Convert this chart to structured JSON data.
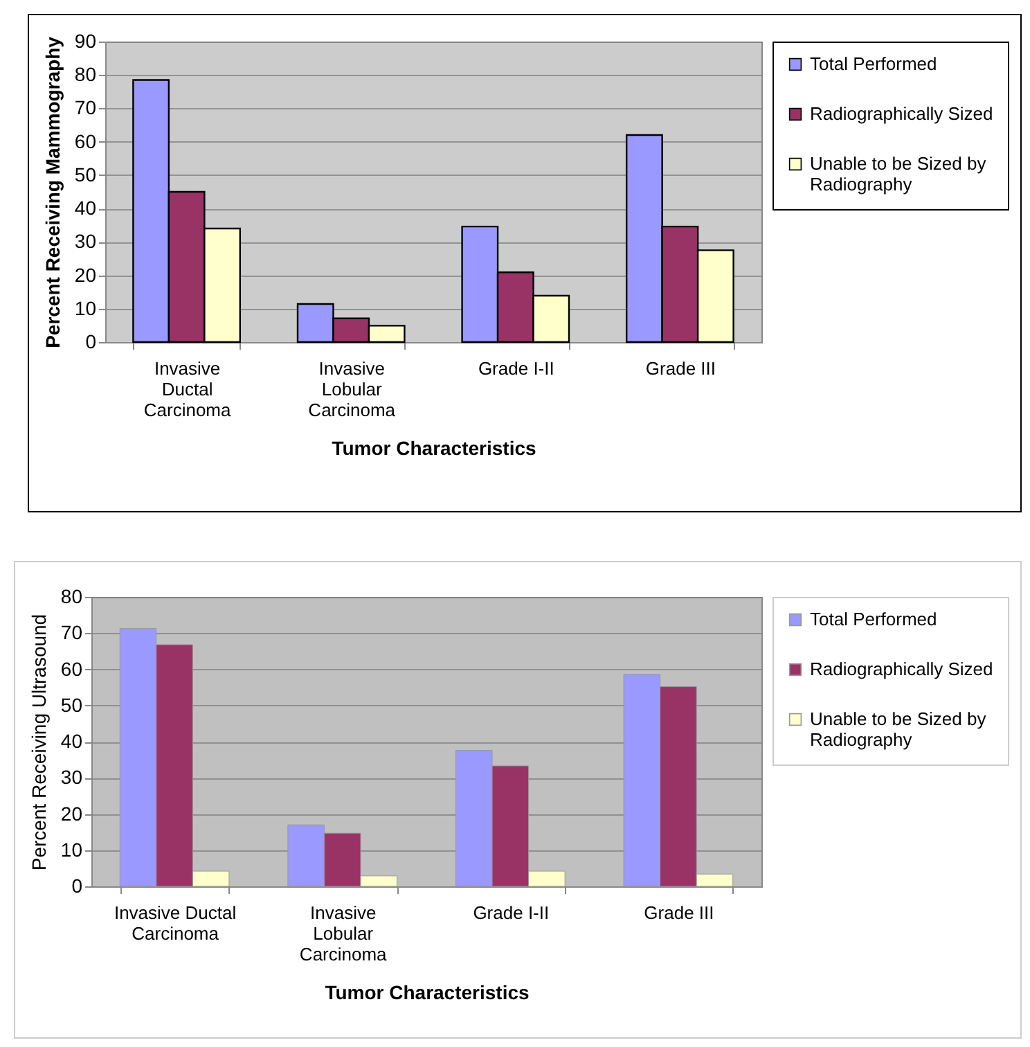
{
  "chart_data": [
    {
      "type": "bar",
      "xlabel": "Tumor Characteristics",
      "ylabel": "Percent Receiving Mammography",
      "categories": [
        "Invasive Ductal Carcinoma",
        "Invasive Lobular Carcinoma",
        "Grade I-II",
        "Grade III"
      ],
      "series": [
        {
          "name": "Total Performed",
          "color": "#9999ff",
          "values": [
            78.5,
            11.4,
            34.6,
            62
          ]
        },
        {
          "name": "Radiographically Sized",
          "color": "#993366",
          "values": [
            45,
            7.1,
            20.9,
            34.6
          ]
        },
        {
          "name": "Unable to be Sized by Radiography",
          "color": "#ffffcc",
          "values": [
            34,
            4.9,
            13.9,
            27.5
          ]
        }
      ],
      "ylim": [
        0,
        90
      ],
      "yticks": [
        0,
        10,
        20,
        30,
        40,
        50,
        60,
        70,
        80,
        90
      ],
      "grid": "y",
      "legend": "right"
    },
    {
      "type": "bar",
      "xlabel": "Tumor Characteristics",
      "ylabel": "Percent Receiving Ultrasound",
      "categories": [
        "Invasive Ductal Carcinoma",
        "Invasive Lobular Carcinoma",
        "Grade I-II",
        "Grade III"
      ],
      "series": [
        {
          "name": "Total Performed",
          "color": "#9999ff",
          "values": [
            71.3,
            17,
            37.6,
            58.6
          ]
        },
        {
          "name": "Radiographically Sized",
          "color": "#993366",
          "values": [
            66.8,
            14.7,
            33.3,
            55.2
          ]
        },
        {
          "name": "Unable to be Sized by Radiography",
          "color": "#ffffcc",
          "values": [
            4.2,
            2.9,
            4.2,
            3.4
          ]
        }
      ],
      "ylim": [
        0,
        80
      ],
      "yticks": [
        0,
        10,
        20,
        30,
        40,
        50,
        60,
        70,
        80
      ],
      "grid": "y",
      "legend": "right"
    }
  ]
}
